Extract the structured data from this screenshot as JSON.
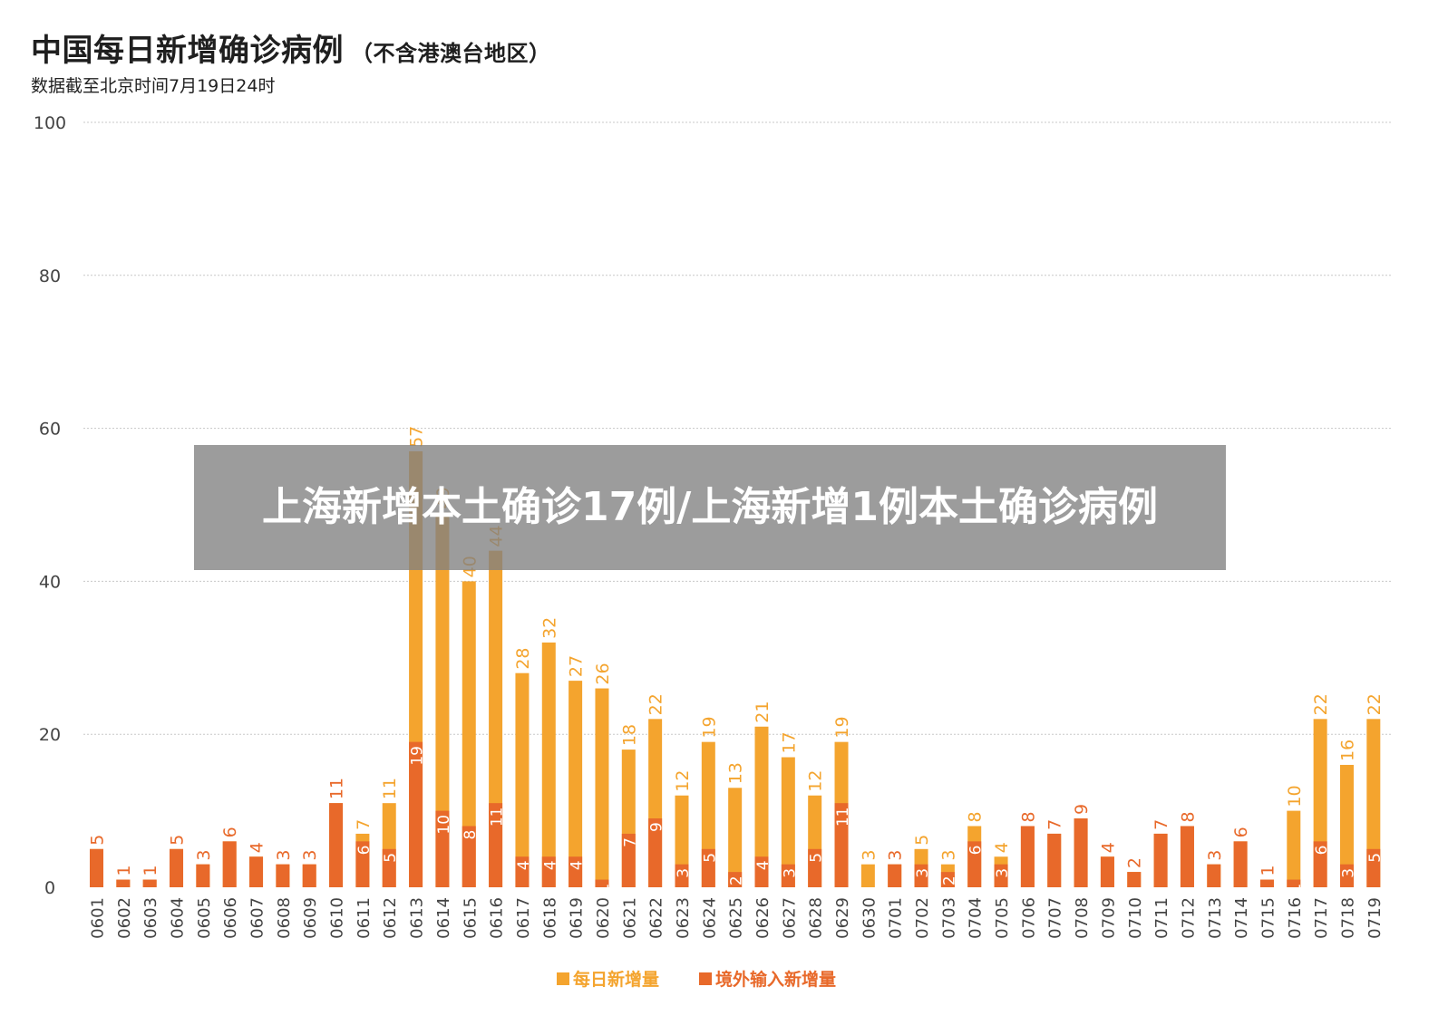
{
  "title": "中国每日新增确诊病例",
  "title_note": "（不含港澳台地区）",
  "subtitle": "数据截至北京时间7月19日24时",
  "banner": "上海新增本土确诊17例/上海新增1例本土确诊病例",
  "colors": {
    "daily": "#f4a42e",
    "imported": "#e8692a",
    "grid": "#c8c8c8",
    "axis_text": "#444444"
  },
  "chart_data": {
    "type": "bar",
    "stacked": "overlay",
    "title": "中国每日新增确诊病例",
    "ylim": [
      0,
      100
    ],
    "yticks": [
      0,
      20,
      40,
      60,
      80,
      100
    ],
    "grid": true,
    "legend_position": "bottom-center",
    "categories": [
      "0601",
      "0602",
      "0603",
      "0604",
      "0605",
      "0606",
      "0607",
      "0608",
      "0609",
      "0610",
      "0611",
      "0612",
      "0613",
      "0614",
      "0615",
      "0616",
      "0617",
      "0618",
      "0619",
      "0620",
      "0621",
      "0622",
      "0623",
      "0624",
      "0625",
      "0626",
      "0627",
      "0628",
      "0629",
      "0630",
      "0701",
      "0702",
      "0703",
      "0704",
      "0705",
      "0706",
      "0707",
      "0708",
      "0709",
      "0710",
      "0711",
      "0712",
      "0713",
      "0714",
      "0715",
      "0716",
      "0717",
      "0718",
      "0719"
    ],
    "series": [
      {
        "name": "每日新增量",
        "color": "#f4a42e",
        "values": [
          5,
          1,
          1,
          5,
          3,
          6,
          4,
          3,
          3,
          11,
          7,
          11,
          57,
          49,
          40,
          44,
          28,
          32,
          27,
          26,
          18,
          22,
          12,
          19,
          13,
          21,
          17,
          12,
          19,
          3,
          3,
          5,
          3,
          8,
          4,
          8,
          7,
          9,
          4,
          2,
          7,
          8,
          3,
          6,
          1,
          10,
          22,
          16,
          22
        ]
      },
      {
        "name": "境外输入新增量",
        "color": "#e8692a",
        "values": [
          5,
          1,
          1,
          5,
          3,
          6,
          4,
          3,
          3,
          11,
          6,
          5,
          19,
          10,
          8,
          11,
          4,
          4,
          4,
          1,
          7,
          9,
          3,
          5,
          2,
          4,
          3,
          5,
          11,
          0,
          3,
          3,
          2,
          6,
          3,
          8,
          7,
          9,
          4,
          2,
          7,
          8,
          3,
          6,
          1,
          1,
          6,
          3,
          5
        ]
      }
    ]
  }
}
